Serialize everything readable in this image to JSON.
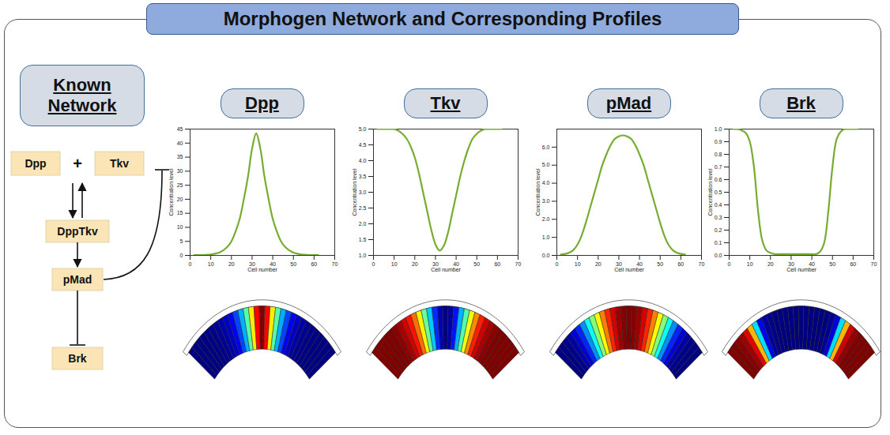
{
  "title": "Morphogen Network and Corresponding Profiles",
  "network": {
    "heading": "Known Network",
    "nodes": [
      "Dpp",
      "Tkv",
      "DppTkv",
      "pMad",
      "Brk"
    ],
    "operator": "+"
  },
  "chart_data": [
    {
      "type": "line",
      "title": "Dpp",
      "xlabel": "Cell number",
      "ylabel": "Concentration level",
      "color": "#77ac30",
      "x": [
        2,
        4,
        6,
        8,
        10,
        12,
        14,
        16,
        18,
        20,
        22,
        24,
        26,
        28,
        30,
        32,
        34,
        36,
        38,
        40,
        42,
        44,
        46,
        48,
        50,
        52,
        54,
        56,
        58,
        60,
        62
      ],
      "values": [
        0.1,
        0.1,
        0.1,
        0.2,
        0.3,
        0.6,
        1,
        1.8,
        3,
        5,
        8.5,
        13,
        20,
        28,
        38,
        43.5,
        38,
        28,
        20,
        13,
        8.5,
        5,
        3,
        1.8,
        1,
        0.6,
        0.3,
        0.2,
        0.1,
        0.1,
        0.1
      ],
      "xlim": [
        0,
        70
      ],
      "xticks": [
        0,
        10,
        20,
        30,
        40,
        50,
        60,
        70
      ],
      "ylim": [
        0,
        45
      ],
      "yticks": [
        0,
        5,
        10,
        15,
        20,
        25,
        30,
        35,
        40,
        45
      ]
    },
    {
      "type": "line",
      "title": "Tkv",
      "xlabel": "Cell number",
      "ylabel": "Concentration level",
      "color": "#77ac30",
      "x": [
        2,
        4,
        6,
        8,
        10,
        12,
        14,
        16,
        18,
        20,
        22,
        24,
        26,
        28,
        30,
        32,
        34,
        36,
        38,
        40,
        42,
        44,
        46,
        48,
        50,
        52,
        54,
        56,
        58,
        60,
        62
      ],
      "values": [
        5,
        5,
        5,
        5,
        5,
        4.95,
        4.85,
        4.7,
        4.45,
        4.1,
        3.6,
        3,
        2.4,
        1.8,
        1.35,
        1.15,
        1.3,
        1.7,
        2.3,
        2.9,
        3.5,
        4,
        4.4,
        4.7,
        4.85,
        4.95,
        5,
        5,
        5,
        5,
        5
      ],
      "xlim": [
        0,
        70
      ],
      "xticks": [
        0,
        10,
        20,
        30,
        40,
        50,
        60,
        70
      ],
      "ylim": [
        1,
        5
      ],
      "yticks": [
        1,
        1.5,
        2,
        2.5,
        3,
        3.5,
        4,
        4.5,
        5
      ]
    },
    {
      "type": "line",
      "title": "pMad",
      "xlabel": "Cell number",
      "ylabel": "Concentration level",
      "color": "#77ac30",
      "x": [
        2,
        4,
        6,
        8,
        10,
        12,
        14,
        16,
        18,
        20,
        22,
        24,
        26,
        28,
        30,
        32,
        34,
        36,
        38,
        40,
        42,
        44,
        46,
        48,
        50,
        52,
        54,
        56,
        58,
        60,
        62
      ],
      "values": [
        0.05,
        0.08,
        0.15,
        0.3,
        0.6,
        1.1,
        1.8,
        2.6,
        3.4,
        4.2,
        5,
        5.6,
        6.1,
        6.45,
        6.6,
        6.65,
        6.6,
        6.45,
        6.1,
        5.6,
        5,
        4.2,
        3.4,
        2.6,
        1.8,
        1.1,
        0.6,
        0.3,
        0.15,
        0.08,
        0.05
      ],
      "xlim": [
        0,
        70
      ],
      "xticks": [
        0,
        10,
        20,
        30,
        40,
        50,
        60,
        70
      ],
      "ylim": [
        0,
        7
      ],
      "yticks": [
        0,
        1,
        2,
        3,
        4,
        5,
        6
      ]
    },
    {
      "type": "line",
      "title": "Brk",
      "xlabel": "Cell number",
      "ylabel": "Concentration level",
      "color": "#77ac30",
      "x": [
        2,
        4,
        6,
        8,
        10,
        12,
        14,
        16,
        18,
        20,
        22,
        24,
        26,
        28,
        30,
        32,
        34,
        36,
        38,
        40,
        42,
        44,
        46,
        48,
        50,
        52,
        54,
        56,
        58,
        60,
        62
      ],
      "values": [
        1,
        1,
        0.99,
        0.97,
        0.9,
        0.7,
        0.35,
        0.12,
        0.04,
        0.02,
        0.01,
        0.01,
        0.01,
        0.01,
        0.01,
        0.01,
        0.01,
        0.01,
        0.01,
        0.01,
        0.01,
        0.03,
        0.1,
        0.35,
        0.7,
        0.92,
        0.98,
        1,
        1,
        1,
        1
      ],
      "xlim": [
        0,
        70
      ],
      "xticks": [
        0,
        10,
        20,
        30,
        40,
        50,
        60,
        70
      ],
      "ylim": [
        0,
        1
      ],
      "yticks": [
        0,
        0.1,
        0.2,
        0.3,
        0.4,
        0.5,
        0.6,
        0.7,
        0.8,
        0.9,
        1
      ]
    }
  ]
}
